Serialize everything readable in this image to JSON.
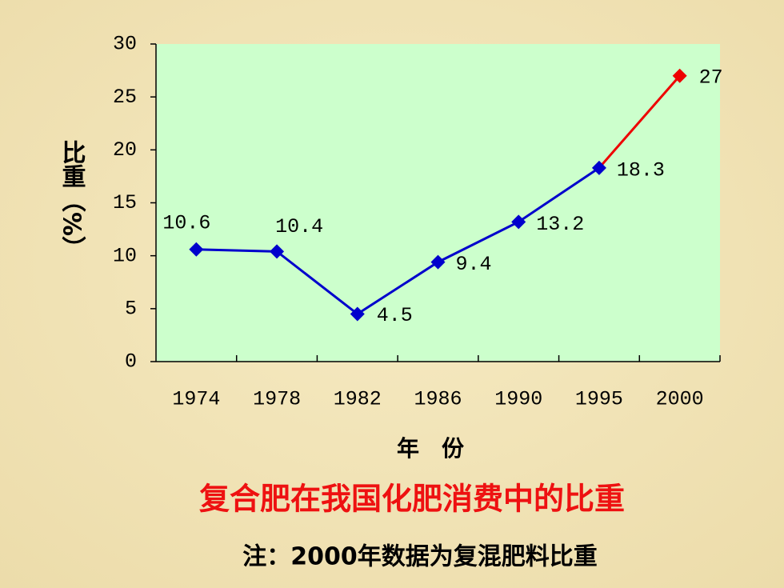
{
  "chart_data": {
    "type": "line",
    "title": "复合肥在我国化肥消费中的比重",
    "note": "注：2000年数据为复混肥料比重",
    "x_label": "年　份",
    "y_label": "比重（%）",
    "categories": [
      "1974",
      "1978",
      "1982",
      "1986",
      "1990",
      "1995",
      "2000"
    ],
    "values": [
      10.6,
      10.4,
      4.5,
      9.4,
      13.2,
      18.3,
      27
    ],
    "point_colors": [
      "#0000cc",
      "#0000cc",
      "#0000cc",
      "#0000cc",
      "#0000cc",
      "#0000cc",
      "#ee0000"
    ],
    "ylim": [
      0,
      30
    ],
    "yticks": [
      0,
      5,
      10,
      15,
      20,
      25,
      30
    ],
    "plot_background": "#ccffcc",
    "title_color": "#ee1111"
  }
}
